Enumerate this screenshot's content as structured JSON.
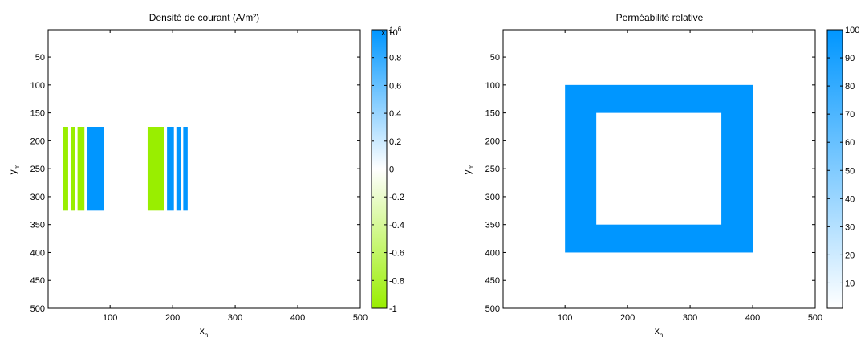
{
  "chart_data": [
    {
      "type": "heatmap",
      "title": "Densité de courant (A/m²)",
      "xlabel": {
        "base": "x",
        "sub": "n"
      },
      "ylabel": {
        "base": "y",
        "sub": "m"
      },
      "xlim": [
        1,
        500
      ],
      "ylim": [
        1,
        500
      ],
      "y_reversed": true,
      "xticks": [
        100,
        200,
        300,
        400,
        500
      ],
      "yticks": [
        50,
        100,
        150,
        200,
        250,
        300,
        350,
        400,
        450,
        500
      ],
      "colorbar": {
        "range": [
          -1,
          1
        ],
        "ticks": [
          -1,
          -0.8,
          -0.6,
          -0.4,
          -0.2,
          0,
          0.2,
          0.4,
          0.6,
          0.8,
          1
        ],
        "tick_labels": [
          "-1",
          "-0.8",
          "-0.6",
          "-0.4",
          "-0.2",
          "0",
          "0.2",
          "0.4",
          "0.6",
          "0.8",
          "1"
        ],
        "exponent_label": {
          "base": "x 10",
          "exp": "6"
        },
        "color_min": "#99ee00",
        "color_zero": "#ffffff",
        "color_max": "#0096ff"
      },
      "regions": [
        {
          "x": [
            25,
            33
          ],
          "y": [
            175,
            325
          ],
          "value": -1
        },
        {
          "x": [
            37,
            44
          ],
          "y": [
            175,
            325
          ],
          "value": -1
        },
        {
          "x": [
            48,
            59
          ],
          "y": [
            175,
            325
          ],
          "value": -1
        },
        {
          "x": [
            63,
            90
          ],
          "y": [
            175,
            325
          ],
          "value": 1
        },
        {
          "x": [
            160,
            187
          ],
          "y": [
            175,
            325
          ],
          "value": -1
        },
        {
          "x": [
            191,
            202
          ],
          "y": [
            175,
            325
          ],
          "value": 1
        },
        {
          "x": [
            206,
            213
          ],
          "y": [
            175,
            325
          ],
          "value": 1
        },
        {
          "x": [
            217,
            224
          ],
          "y": [
            175,
            325
          ],
          "value": 1
        }
      ]
    },
    {
      "type": "heatmap",
      "title": "Perméabilité relative",
      "xlabel": {
        "base": "x",
        "sub": "n"
      },
      "ylabel": {
        "base": "y",
        "sub": "m"
      },
      "xlim": [
        1,
        500
      ],
      "ylim": [
        1,
        500
      ],
      "y_reversed": true,
      "xticks": [
        100,
        200,
        300,
        400,
        500
      ],
      "yticks": [
        50,
        100,
        150,
        200,
        250,
        300,
        350,
        400,
        450,
        500
      ],
      "colorbar": {
        "range": [
          1,
          100
        ],
        "ticks": [
          10,
          20,
          30,
          40,
          50,
          60,
          70,
          80,
          90,
          100
        ],
        "tick_labels": [
          "10",
          "20",
          "30",
          "40",
          "50",
          "60",
          "70",
          "80",
          "90",
          "100"
        ],
        "color_min": "#ffffff",
        "color_max": "#0096ff"
      },
      "regions": [
        {
          "x": [
            100,
            400
          ],
          "y": [
            100,
            400
          ],
          "value": 100
        },
        {
          "x": [
            150,
            350
          ],
          "y": [
            150,
            350
          ],
          "value": 1
        }
      ]
    }
  ]
}
